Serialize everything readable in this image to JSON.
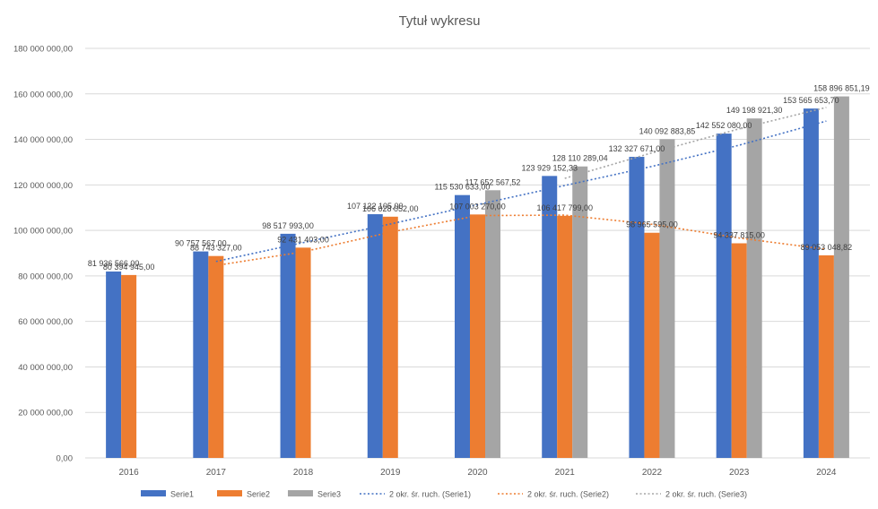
{
  "chart_data": {
    "type": "bar",
    "title": "Tytuł wykresu",
    "xlabel": "",
    "ylabel": "",
    "categories": [
      "2016",
      "2017",
      "2018",
      "2019",
      "2020",
      "2021",
      "2022",
      "2023",
      "2024"
    ],
    "ylim": [
      0,
      180000000
    ],
    "ytick_step": 20000000,
    "ytick_labels": [
      "0,00",
      "20 000 000,00",
      "40 000 000,00",
      "60 000 000,00",
      "80 000 000,00",
      "100 000 000,00",
      "120 000 000,00",
      "140 000 000,00",
      "160 000 000,00",
      "180 000 000,00"
    ],
    "grid": true,
    "legend_position": "bottom",
    "series": [
      {
        "name": "Serie1",
        "color": "#4472C4",
        "values": [
          81936566,
          90757567,
          98517993,
          107122105,
          115530633,
          123929152.33,
          132327671,
          142552080,
          153565653.7
        ],
        "labels": [
          "81 936 566,00",
          "90 757 567,00",
          "98 517 993,00",
          "107 122 105,00",
          "115 530 633,00",
          "123 929 152,33",
          "132 327 671,00",
          "142 552 080,00",
          "153 565 653,70"
        ]
      },
      {
        "name": "Serie2",
        "color": "#ED7D31",
        "values": [
          80394945,
          88743327,
          92431403,
          106028052,
          107003270,
          106417799,
          98965595,
          94337815,
          89053048.82
        ],
        "labels": [
          "80 394 945,00",
          "88 743 327,00",
          "92 431 403,00",
          "106 028 052,00",
          "107 003 270,00",
          "106 417 799,00",
          "98 965 595,00",
          "94 337 815,00",
          "89 053 048,82"
        ]
      },
      {
        "name": "Serie3",
        "color": "#A5A5A5",
        "values": [
          null,
          null,
          null,
          null,
          117652567.52,
          128110289.04,
          140092883.85,
          149198921.3,
          158896851.19
        ],
        "labels": [
          "",
          "",
          "",
          "",
          "117 652 567,52",
          "128 110 289,04",
          "140 092 883,85",
          "149 198 921,30",
          "158 896 851,19"
        ]
      }
    ],
    "trendlines": [
      {
        "name": "2 okr. śr. ruch. (Serie1)",
        "series_index": 0,
        "color": "#4472C4",
        "period": 2
      },
      {
        "name": "2 okr. śr. ruch. (Serie2)",
        "series_index": 1,
        "color": "#ED7D31",
        "period": 2
      },
      {
        "name": "2 okr. śr. ruch. (Serie3)",
        "series_index": 2,
        "color": "#A5A5A5",
        "period": 2
      }
    ]
  }
}
